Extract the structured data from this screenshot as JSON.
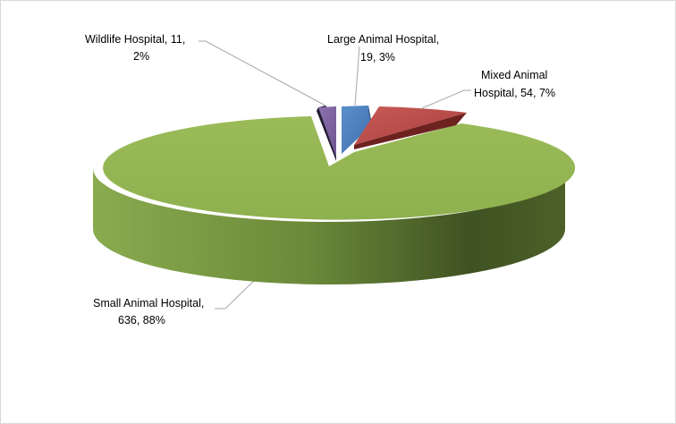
{
  "chart_data": {
    "type": "pie",
    "title": "",
    "legend": "none",
    "slices": [
      {
        "name": "Large Animal Hospital",
        "value": 19,
        "percent": "3%",
        "label_line1": "Large Animal Hospital,",
        "label_line2": "19, 3%",
        "color": "#4f81bd"
      },
      {
        "name": "Mixed Animal Hospital",
        "value": 54,
        "percent": "7%",
        "label_line1": "Mixed Animal",
        "label_line2": "Hospital, 54,  7%",
        "color": "#c0504d"
      },
      {
        "name": "Small Animal Hospital",
        "value": 636,
        "percent": "88%",
        "label_line1": "Small Animal Hospital,",
        "label_line2": "636,  88%",
        "color": "#9bbb59"
      },
      {
        "name": "Wildlife Hospital",
        "value": 11,
        "percent": "2%",
        "label_line1": "Wildlife Hospital, 11,",
        "label_line2": "2%",
        "color": "#8064a2"
      }
    ]
  }
}
